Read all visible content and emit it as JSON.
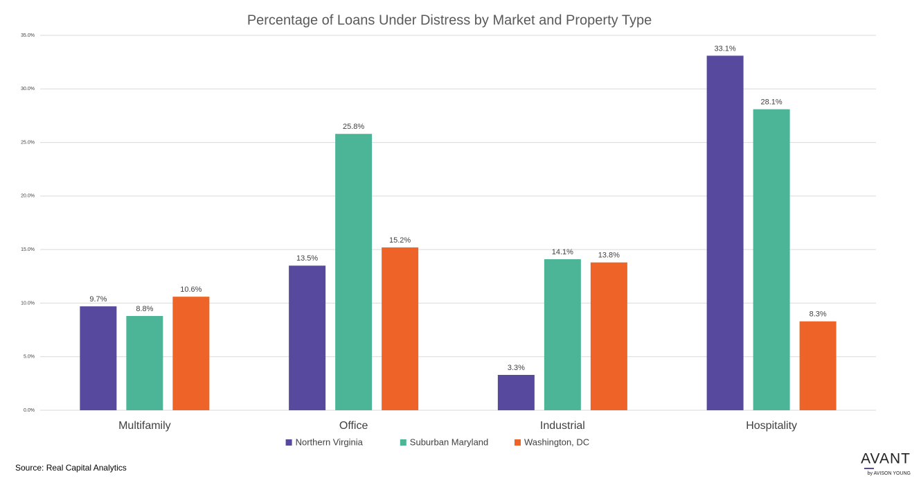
{
  "chart_data": {
    "type": "bar",
    "title": "Percentage of Loans Under Distress by Market and Property Type",
    "categories": [
      "Multifamily",
      "Office",
      "Industrial",
      "Hospitality"
    ],
    "series": [
      {
        "name": "Northern Virginia",
        "color": "#574a9e",
        "values": [
          9.7,
          13.5,
          3.3,
          33.1
        ],
        "value_labels": [
          "9.7%",
          "13.5%",
          "3.3%",
          "33.1%"
        ]
      },
      {
        "name": "Suburban Maryland",
        "color": "#4db597",
        "values": [
          8.8,
          25.8,
          14.1,
          28.1
        ],
        "value_labels": [
          "8.8%",
          "25.8%",
          "14.1%",
          "28.1%"
        ]
      },
      {
        "name": "Washington, DC",
        "color": "#ee6428",
        "values": [
          10.6,
          15.2,
          13.8,
          8.3
        ],
        "value_labels": [
          "10.6%",
          "15.2%",
          "13.8%",
          "8.3%"
        ]
      }
    ],
    "ylim": [
      0,
      35
    ],
    "yticks": [
      {
        "value": 0,
        "label": "0.0%"
      },
      {
        "value": 5,
        "label": "5.0%"
      },
      {
        "value": 10,
        "label": "10.0%"
      },
      {
        "value": 15,
        "label": "15.0%"
      },
      {
        "value": 20,
        "label": "20.0%"
      },
      {
        "value": 25,
        "label": "25.0%"
      },
      {
        "value": 30,
        "label": "30.0%"
      },
      {
        "value": 35,
        "label": "35.0%"
      }
    ],
    "grid": true,
    "legend": "bottom"
  },
  "source": "Source: Real Capital Analytics",
  "logo": {
    "name": "AVANT",
    "tagline": "by AVISON YOUNG"
  }
}
